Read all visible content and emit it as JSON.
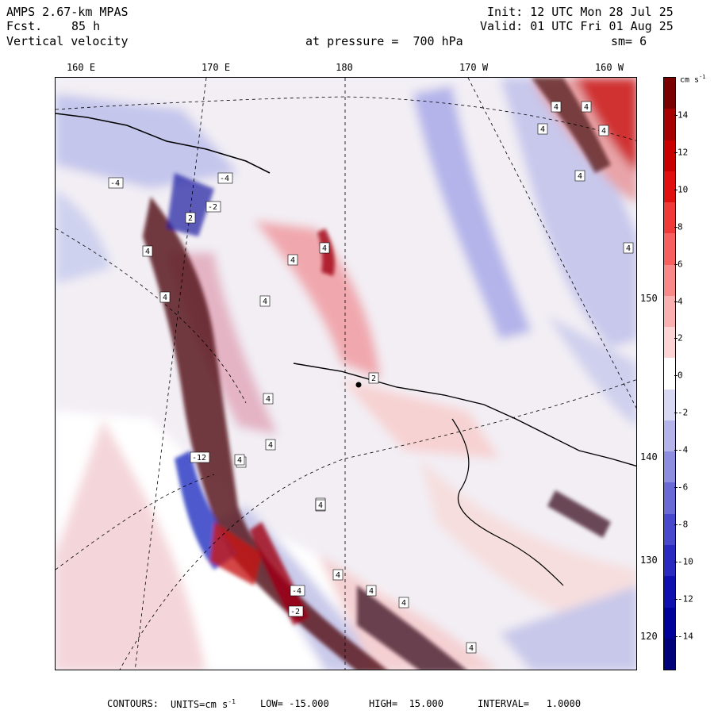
{
  "header": {
    "model": "AMPS 2.67-km MPAS",
    "forecast_label": "Fcst.",
    "forecast_value": "85 h",
    "field": "Vertical velocity",
    "init": "Init: 12 UTC Mon 28 Jul 25",
    "valid": "Valid: 01 UTC Fri 01 Aug 25",
    "pressure": "at pressure =  700 hPa",
    "smoothing": "sm= 6"
  },
  "longitude_labels": [
    "160 E",
    "170 E",
    "180",
    "170 W",
    "160 W"
  ],
  "latitude_labels": [
    "150 W",
    "140 W",
    "130 W",
    "120 W"
  ],
  "map_point_labels": [
    "4",
    "-4",
    "-2",
    "-12",
    "2"
  ],
  "colorbar": {
    "unit": "cm s",
    "unit_exp": "-1",
    "ticks": [
      "14",
      "12",
      "10",
      "8",
      "6",
      "4",
      "2",
      "0",
      "-2",
      "-4",
      "-6",
      "-8",
      "-10",
      "-12",
      "-14"
    ],
    "colors": [
      "#7a0000",
      "#a60000",
      "#c80000",
      "#e01010",
      "#f03a3a",
      "#f86060",
      "#f98888",
      "#fab0b0",
      "#fcd4d4",
      "#ffffff",
      "#d8d8f2",
      "#b4b4ea",
      "#8e8ee0",
      "#6a6ad6",
      "#4848cc",
      "#2a2ac0",
      "#1010b0",
      "#00009a",
      "#00007a"
    ]
  },
  "footer": {
    "contours_label": "CONTOURS:",
    "units_text": "UNITS=cm s",
    "units_exp": "-1",
    "low": "LOW= -15.000",
    "high": "HIGH=  15.000",
    "interval": "INTERVAL=   1.0000"
  }
}
